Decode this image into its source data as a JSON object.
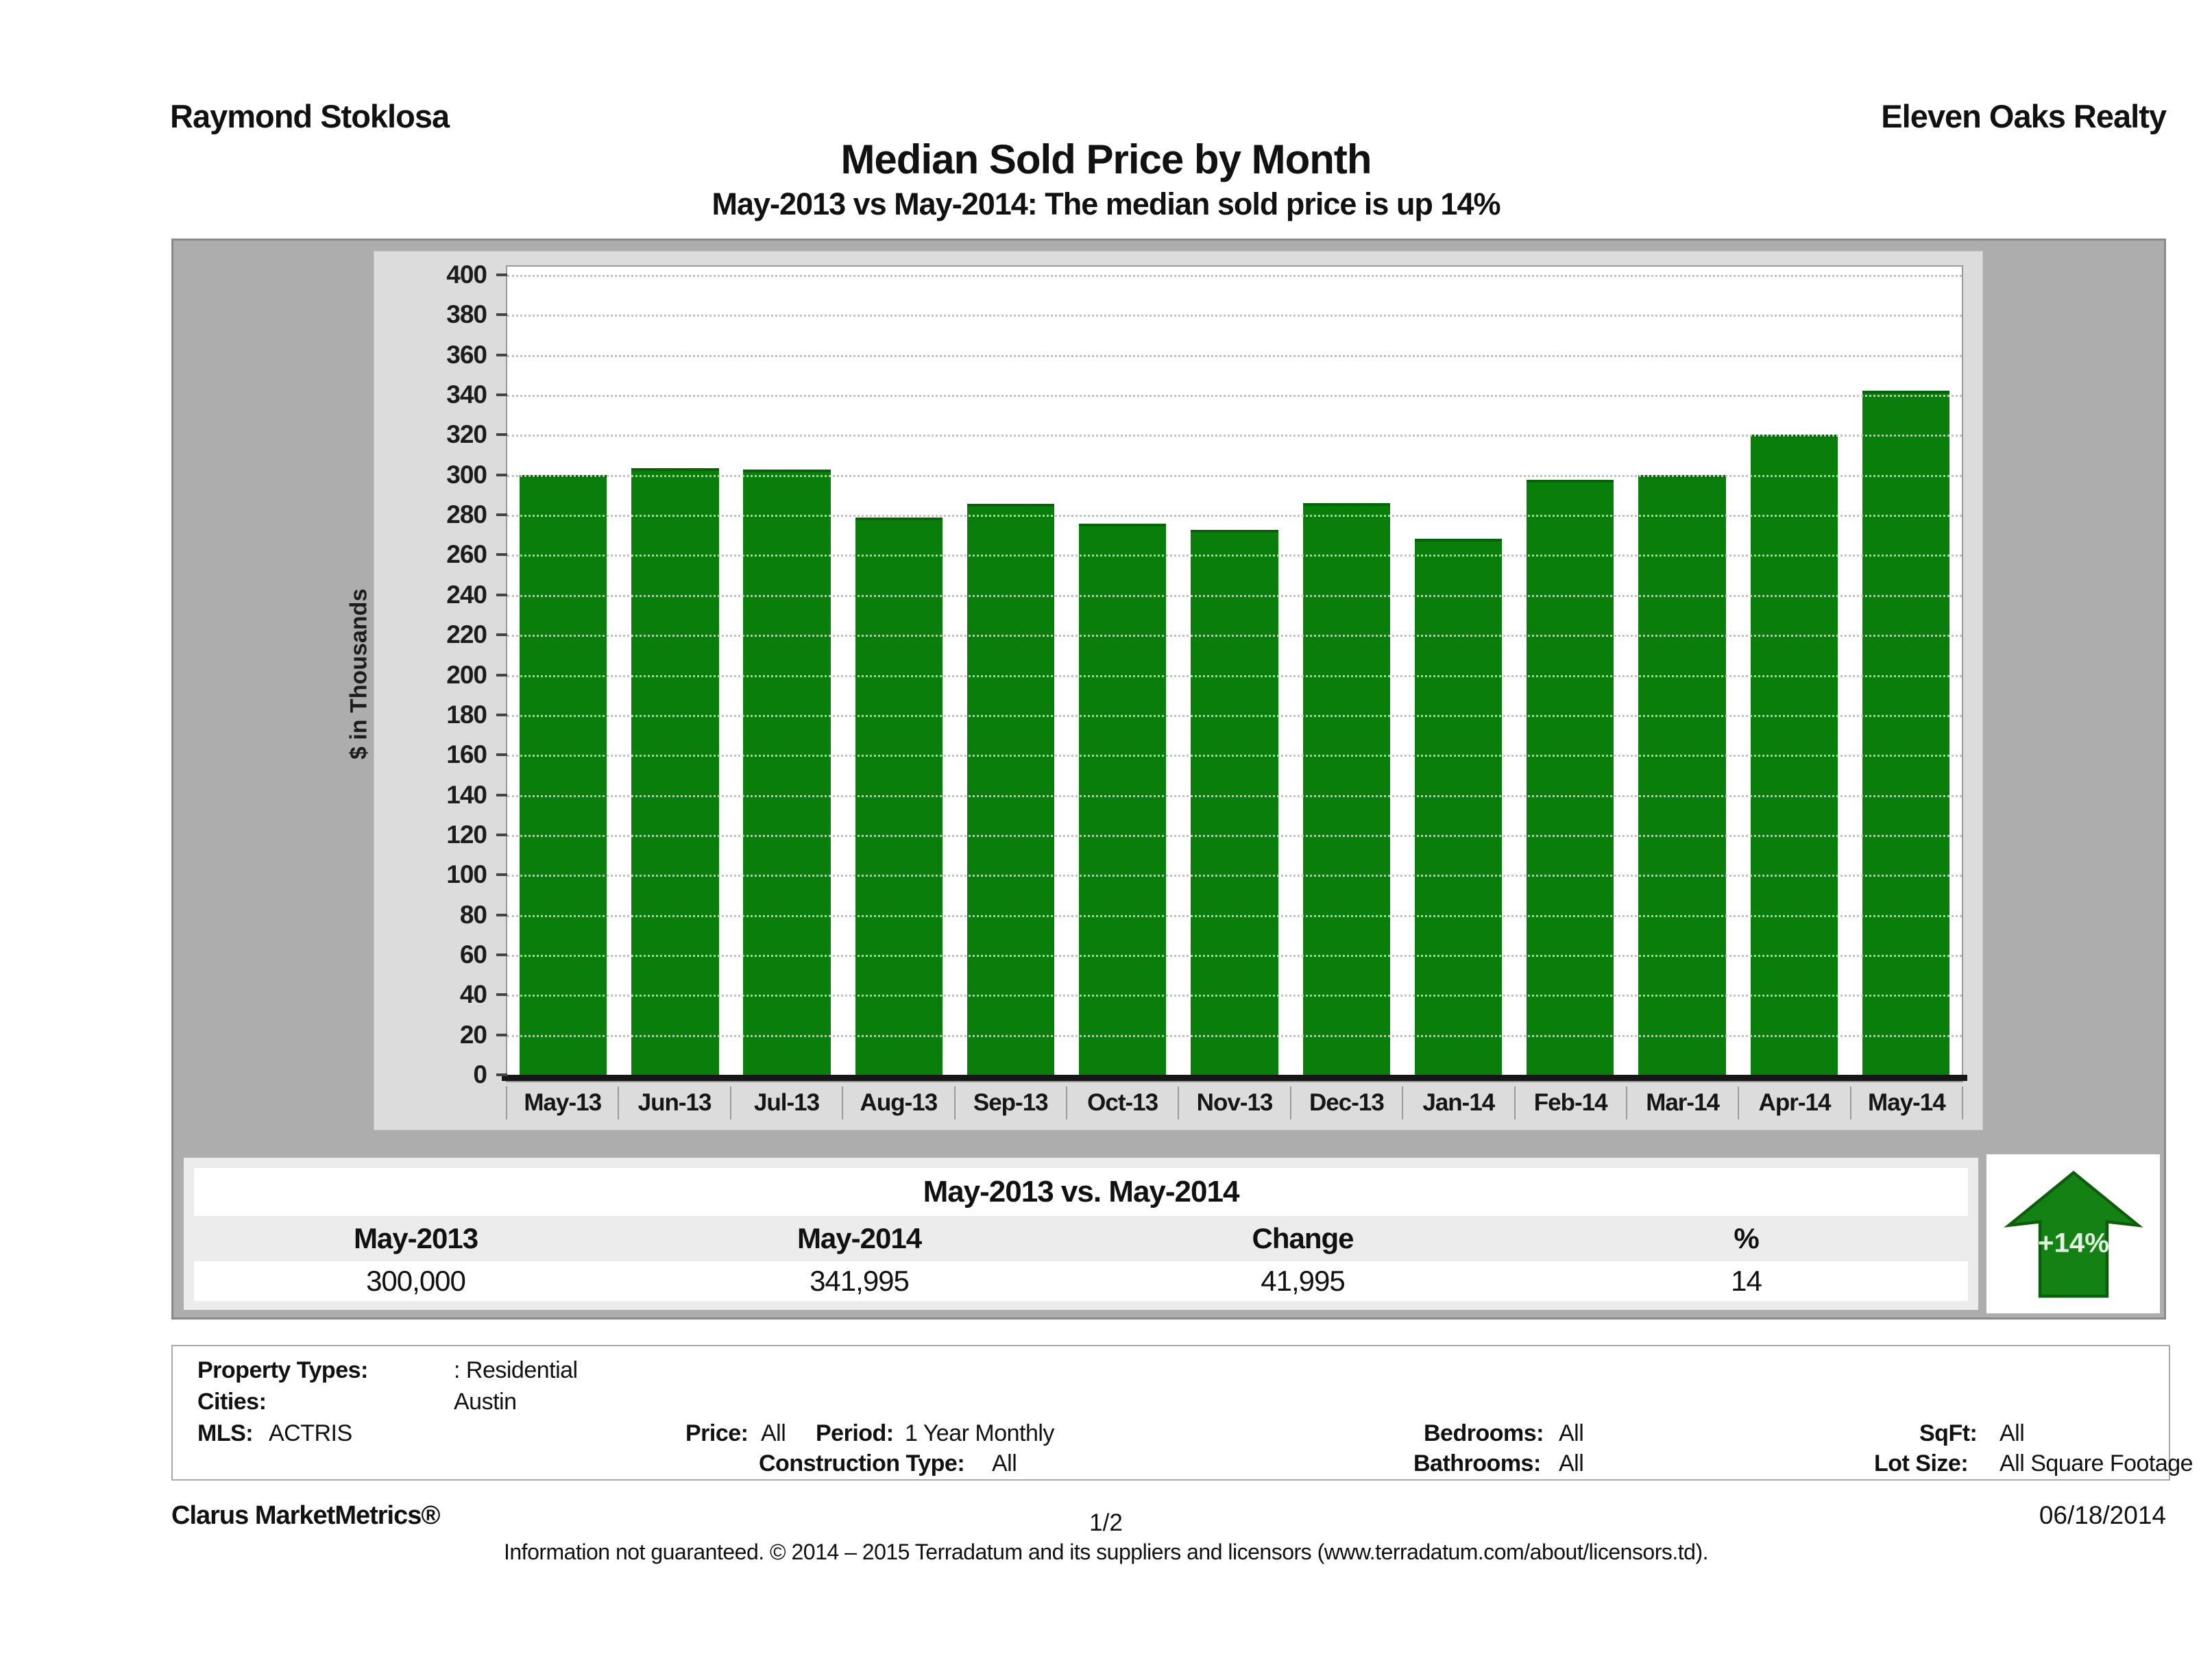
{
  "header": {
    "agent": "Raymond Stoklosa",
    "brokerage": "Eleven Oaks Realty",
    "title": "Median Sold Price by Month",
    "subtitle": "May-2013 vs May-2014: The median sold price is up 14%"
  },
  "chart_data": {
    "type": "bar",
    "title": "Median Sold Price by Month",
    "categories": [
      "May-13",
      "Jun-13",
      "Jul-13",
      "Aug-13",
      "Sep-13",
      "Oct-13",
      "Nov-13",
      "Dec-13",
      "Jan-14",
      "Feb-14",
      "Mar-14",
      "Apr-14",
      "May-14"
    ],
    "values": [
      300,
      303.5,
      302.5,
      278.5,
      285.5,
      275.5,
      272.5,
      286,
      268,
      297.5,
      300,
      320,
      342
    ],
    "xlabel": "",
    "ylabel": "$ in Thousands",
    "ylim": [
      0,
      400
    ],
    "ytick_step": 20,
    "grid": true,
    "legend": "none",
    "bar_color": "#0a7e0a"
  },
  "summary": {
    "title": "May-2013 vs. May-2014",
    "columns": [
      "May-2013",
      "May-2014",
      "Change",
      "%"
    ],
    "values": [
      "300,000",
      "341,995",
      "41,995",
      "14"
    ],
    "arrow_label": "+14%",
    "arrow_color": "#148114"
  },
  "filters": {
    "property_types_label": "Property Types:",
    "property_types_value": ": Residential",
    "cities_label": "Cities:",
    "cities_value": "Austin",
    "mls_label": "MLS:",
    "mls_value": "ACTRIS",
    "price_label": "Price:",
    "price_value": "All",
    "period_label": "Period:",
    "period_value": "1 Year Monthly",
    "bedrooms_label": "Bedrooms:",
    "bedrooms_value": "All",
    "sqft_label": "SqFt:",
    "sqft_value": "All",
    "construction_label": "Construction Type:",
    "construction_value": "All",
    "bathrooms_label": "Bathrooms:",
    "bathrooms_value": "All",
    "lot_label": "Lot Size:",
    "lot_value": "All Square Footage"
  },
  "footer": {
    "brand": "Clarus MarketMetrics®",
    "page": "1/2",
    "date": "06/18/2014",
    "disclaimer": "Information not guaranteed. © 2014 – 2015 Terradatum and its suppliers and licensors (www.terradatum.com/about/licensors.td)."
  }
}
